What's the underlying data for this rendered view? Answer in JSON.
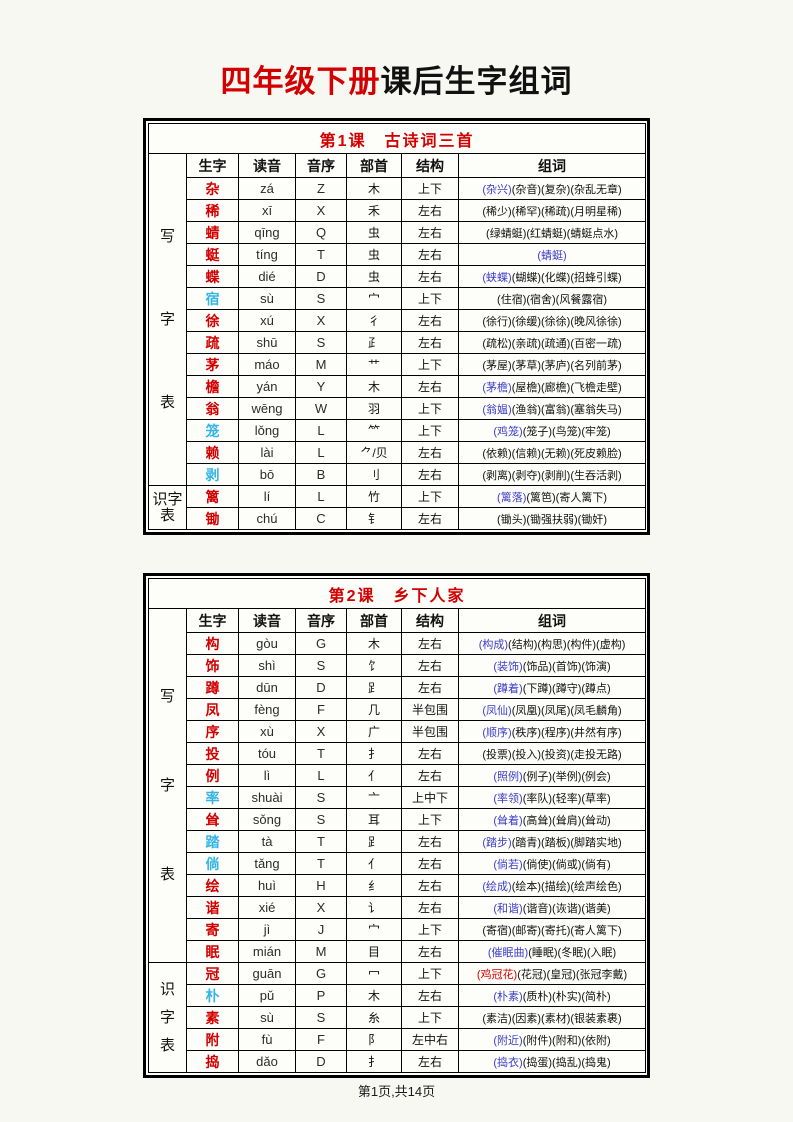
{
  "title": {
    "red": "四年级下册",
    "black": "课后生字组词"
  },
  "footer": "第1页,共14页",
  "colors": {
    "red": "#d20000",
    "cyan": "#35b5e5",
    "blue": "#3c3cc8",
    "black": "#111111"
  },
  "column_headers": [
    "生字",
    "读音",
    "音序",
    "部首",
    "结构",
    "组词"
  ],
  "tables": [
    {
      "title": "第1课　古诗词三首",
      "sections": [
        {
          "label": "写字表",
          "rows": [
            {
              "char": "杂",
              "char_color": "red",
              "pinyin": "zá",
              "initial": "Z",
              "radical": "木",
              "structure": "上下",
              "lead": "(杂兴)",
              "lead_color": "blue",
              "rest": "(杂音)(复杂)(杂乱无章)"
            },
            {
              "char": "稀",
              "char_color": "red",
              "pinyin": "xī",
              "initial": "X",
              "radical": "禾",
              "structure": "左右",
              "lead": "",
              "lead_color": "",
              "rest": "(稀少)(稀罕)(稀疏)(月明星稀)"
            },
            {
              "char": "蜻",
              "char_color": "red",
              "pinyin": "qīng",
              "initial": "Q",
              "radical": "虫",
              "structure": "左右",
              "lead": "",
              "lead_color": "",
              "rest": "(绿蜻蜓)(红蜻蜓)(蜻蜓点水)"
            },
            {
              "char": "蜓",
              "char_color": "red",
              "pinyin": "tíng",
              "initial": "T",
              "radical": "虫",
              "structure": "左右",
              "lead": "(蜻蜓)",
              "lead_color": "blue",
              "rest": ""
            },
            {
              "char": "蝶",
              "char_color": "red",
              "pinyin": "dié",
              "initial": "D",
              "radical": "虫",
              "structure": "左右",
              "lead": "(蛱蝶)",
              "lead_color": "blue",
              "rest": "(蝴蝶)(化蝶)(招蜂引蝶)"
            },
            {
              "char": "宿",
              "char_color": "cyan",
              "pinyin": "sù",
              "initial": "S",
              "radical": "宀",
              "structure": "上下",
              "lead": "",
              "lead_color": "",
              "rest": "(住宿)(宿舍)(风餐露宿)"
            },
            {
              "char": "徐",
              "char_color": "red",
              "pinyin": "xú",
              "initial": "X",
              "radical": "彳",
              "structure": "左右",
              "lead": "",
              "lead_color": "",
              "rest": "(徐行)(徐缓)(徐徐)(晚风徐徐)"
            },
            {
              "char": "疏",
              "char_color": "red",
              "pinyin": "shū",
              "initial": "S",
              "radical": "⺪",
              "structure": "左右",
              "lead": "",
              "lead_color": "",
              "rest": "(疏松)(亲疏)(疏通)(百密一疏)"
            },
            {
              "char": "茅",
              "char_color": "red",
              "pinyin": "máo",
              "initial": "M",
              "radical": "艹",
              "structure": "上下",
              "lead": "",
              "lead_color": "",
              "rest": "(茅屋)(茅草)(茅庐)(名列前茅)"
            },
            {
              "char": "檐",
              "char_color": "red",
              "pinyin": "yán",
              "initial": "Y",
              "radical": "木",
              "structure": "左右",
              "lead": "(茅檐)",
              "lead_color": "blue",
              "rest": "(屋檐)(廊檐)(飞檐走壁)"
            },
            {
              "char": "翁",
              "char_color": "red",
              "pinyin": "wēng",
              "initial": "W",
              "radical": "羽",
              "structure": "上下",
              "lead": "(翁媪)",
              "lead_color": "blue",
              "rest": "(渔翁)(富翁)(塞翁失马)"
            },
            {
              "char": "笼",
              "char_color": "cyan",
              "pinyin": "lǒng",
              "initial": "L",
              "radical": "⺮",
              "structure": "上下",
              "lead": "(鸡笼)",
              "lead_color": "blue",
              "rest": "(笼子)(鸟笼)(牢笼)"
            },
            {
              "char": "赖",
              "char_color": "red",
              "pinyin": "lài",
              "initial": "L",
              "radical": "⺈/贝",
              "structure": "左右",
              "lead": "",
              "lead_color": "",
              "rest": "(依赖)(信赖)(无赖)(死皮赖脸)"
            },
            {
              "char": "剥",
              "char_color": "cyan",
              "pinyin": "bō",
              "initial": "B",
              "radical": "刂",
              "structure": "左右",
              "lead": "",
              "lead_color": "",
              "rest": "(剥离)(剥夺)(剥削)(生吞活剥)"
            }
          ]
        },
        {
          "label": "识字表",
          "rows": [
            {
              "char": "篱",
              "char_color": "red",
              "pinyin": "lí",
              "initial": "L",
              "radical": "竹",
              "structure": "上下",
              "lead": "(篱落)",
              "lead_color": "blue",
              "rest": "(篱笆)(寄人篱下)"
            },
            {
              "char": "锄",
              "char_color": "red",
              "pinyin": "chú",
              "initial": "C",
              "radical": "钅",
              "structure": "左右",
              "lead": "",
              "lead_color": "",
              "rest": "(锄头)(锄强扶弱)(锄奸)"
            }
          ]
        }
      ]
    },
    {
      "title": "第2课　乡下人家",
      "sections": [
        {
          "label": "写字表",
          "rows": [
            {
              "char": "构",
              "char_color": "red",
              "pinyin": "gòu",
              "initial": "G",
              "radical": "木",
              "structure": "左右",
              "lead": "(构成)",
              "lead_color": "blue",
              "rest": "(结构)(构思)(构件)(虚构)"
            },
            {
              "char": "饰",
              "char_color": "red",
              "pinyin": "shì",
              "initial": "S",
              "radical": "饣",
              "structure": "左右",
              "lead": "(装饰)",
              "lead_color": "blue",
              "rest": "(饰品)(首饰)(饰演)"
            },
            {
              "char": "蹲",
              "char_color": "red",
              "pinyin": "dūn",
              "initial": "D",
              "radical": "⻊",
              "structure": "左右",
              "lead": "(蹲着)",
              "lead_color": "blue",
              "rest": "(下蹲)(蹲守)(蹲点)"
            },
            {
              "char": "凤",
              "char_color": "red",
              "pinyin": "fèng",
              "initial": "F",
              "radical": "几",
              "structure": "半包围",
              "lead": "(凤仙)",
              "lead_color": "blue",
              "rest": "(凤凰)(凤尾)(凤毛麟角)"
            },
            {
              "char": "序",
              "char_color": "red",
              "pinyin": "xù",
              "initial": "X",
              "radical": "广",
              "structure": "半包围",
              "lead": "(顺序)",
              "lead_color": "blue",
              "rest": "(秩序)(程序)(井然有序)"
            },
            {
              "char": "投",
              "char_color": "red",
              "pinyin": "tóu",
              "initial": "T",
              "radical": "扌",
              "structure": "左右",
              "lead": "",
              "lead_color": "",
              "rest": "(投票)(投入)(投资)(走投无路)"
            },
            {
              "char": "例",
              "char_color": "red",
              "pinyin": "lì",
              "initial": "L",
              "radical": "亻",
              "structure": "左右",
              "lead": "(照例)",
              "lead_color": "blue",
              "rest": "(例子)(举例)(例会)"
            },
            {
              "char": "率",
              "char_color": "cyan",
              "pinyin": "shuài",
              "initial": "S",
              "radical": "亠",
              "structure": "上中下",
              "lead": "(率领)",
              "lead_color": "blue",
              "rest": "(率队)(轻率)(草率)"
            },
            {
              "char": "耸",
              "char_color": "red",
              "pinyin": "sǒng",
              "initial": "S",
              "radical": "耳",
              "structure": "上下",
              "lead": "(耸着)",
              "lead_color": "blue",
              "rest": "(高耸)(耸肩)(耸动)"
            },
            {
              "char": "踏",
              "char_color": "cyan",
              "pinyin": "tà",
              "initial": "T",
              "radical": "⻊",
              "structure": "左右",
              "lead": "(踏步)",
              "lead_color": "blue",
              "rest": "(踏青)(踏板)(脚踏实地)"
            },
            {
              "char": "倘",
              "char_color": "cyan",
              "pinyin": "tǎng",
              "initial": "T",
              "radical": "亻",
              "structure": "左右",
              "lead": "(倘若)",
              "lead_color": "blue",
              "rest": "(倘使)(倘或)(倘有)"
            },
            {
              "char": "绘",
              "char_color": "red",
              "pinyin": "huì",
              "initial": "H",
              "radical": "纟",
              "structure": "左右",
              "lead": "(绘成)",
              "lead_color": "blue",
              "rest": "(绘本)(描绘)(绘声绘色)"
            },
            {
              "char": "谐",
              "char_color": "red",
              "pinyin": "xié",
              "initial": "X",
              "radical": "讠",
              "structure": "左右",
              "lead": "(和谐)",
              "lead_color": "blue",
              "rest": "(谐音)(诙谐)(谐美)"
            },
            {
              "char": "寄",
              "char_color": "red",
              "pinyin": "jì",
              "initial": "J",
              "radical": "宀",
              "structure": "上下",
              "lead": "",
              "lead_color": "",
              "rest": "(寄宿)(邮寄)(寄托)(寄人篱下)"
            },
            {
              "char": "眠",
              "char_color": "red",
              "pinyin": "mián",
              "initial": "M",
              "radical": "目",
              "structure": "左右",
              "lead": "(催眠曲)",
              "lead_color": "blue",
              "rest": "(睡眠)(冬眠)(入眠)"
            }
          ]
        },
        {
          "label": "识字表",
          "rows": [
            {
              "char": "冠",
              "char_color": "red",
              "pinyin": "guān",
              "initial": "G",
              "radical": "冖",
              "structure": "上下",
              "lead": "(鸡冠花)",
              "lead_color": "red",
              "rest": "(花冠)(皇冠)(张冠李戴)"
            },
            {
              "char": "朴",
              "char_color": "cyan",
              "pinyin": "pǔ",
              "initial": "P",
              "radical": "木",
              "structure": "左右",
              "lead": "(朴素)",
              "lead_color": "blue",
              "rest": "(质朴)(朴实)(简朴)"
            },
            {
              "char": "素",
              "char_color": "red",
              "pinyin": "sù",
              "initial": "S",
              "radical": "糸",
              "structure": "上下",
              "lead": "",
              "lead_color": "",
              "rest": "(素洁)(因素)(素材)(银装素裹)"
            },
            {
              "char": "附",
              "char_color": "red",
              "pinyin": "fù",
              "initial": "F",
              "radical": "阝",
              "structure": "左中右",
              "lead": "(附近)",
              "lead_color": "blue",
              "rest": "(附件)(附和)(依附)"
            },
            {
              "char": "捣",
              "char_color": "red",
              "pinyin": "dǎo",
              "initial": "D",
              "radical": "扌",
              "structure": "左右",
              "lead": "(捣衣)",
              "lead_color": "blue",
              "rest": "(捣蛋)(捣乱)(捣鬼)"
            }
          ]
        }
      ]
    }
  ]
}
